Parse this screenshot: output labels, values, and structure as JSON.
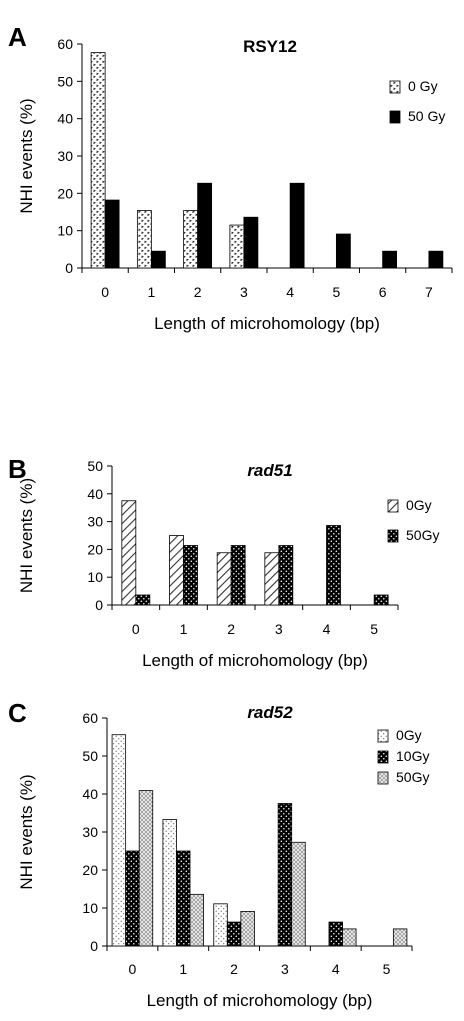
{
  "chart_data": [
    {
      "type": "bar",
      "panel": "A",
      "title": "RSY12",
      "title_italic": false,
      "xlabel": "Length of microhomology (bp)",
      "ylabel": "NHI events (%)",
      "categories": [
        "0",
        "1",
        "2",
        "3",
        "4",
        "5",
        "6",
        "7"
      ],
      "ylim": [
        0,
        60
      ],
      "yticks": [
        0,
        10,
        20,
        30,
        40,
        50,
        60
      ],
      "grid": false,
      "legend_position": "top-right",
      "series": [
        {
          "name": "0 Gy",
          "pattern": "dots",
          "values": [
            57.7,
            15.4,
            15.4,
            11.5,
            0,
            0,
            0,
            0
          ]
        },
        {
          "name": "50 Gy",
          "pattern": "solid",
          "values": [
            18.2,
            4.5,
            22.7,
            13.6,
            22.7,
            9.1,
            4.5,
            4.5
          ]
        }
      ]
    },
    {
      "type": "bar",
      "panel": "B",
      "title": "rad51",
      "title_italic": true,
      "xlabel": "Length of microhomology (bp)",
      "ylabel": "NHI events (%)",
      "categories": [
        "0",
        "1",
        "2",
        "3",
        "4",
        "5"
      ],
      "ylim": [
        0,
        50
      ],
      "yticks": [
        0,
        10,
        20,
        30,
        40,
        50
      ],
      "grid": false,
      "legend_position": "top-right",
      "series": [
        {
          "name": "0Gy",
          "pattern": "hatch",
          "values": [
            37.5,
            25,
            18.8,
            18.8,
            0,
            0
          ]
        },
        {
          "name": "50Gy",
          "pattern": "darkdots",
          "values": [
            3.6,
            21.4,
            21.4,
            21.4,
            28.6,
            3.6
          ]
        }
      ]
    },
    {
      "type": "bar",
      "panel": "C",
      "title": "rad52",
      "title_italic": true,
      "xlabel": "Length of microhomology (bp)",
      "ylabel": "NHI events (%)",
      "categories": [
        "0",
        "1",
        "2",
        "3",
        "4",
        "5"
      ],
      "ylim": [
        0,
        60
      ],
      "yticks": [
        0,
        10,
        20,
        30,
        40,
        50,
        60
      ],
      "grid": false,
      "legend_position": "top-right",
      "series": [
        {
          "name": "0Gy",
          "pattern": "lightdots",
          "values": [
            55.6,
            33.3,
            11.1,
            0,
            0,
            0
          ]
        },
        {
          "name": "10Gy",
          "pattern": "darkdots",
          "values": [
            25,
            25,
            6.3,
            37.5,
            6.3,
            0
          ]
        },
        {
          "name": "50Gy",
          "pattern": "crosshatch",
          "values": [
            40.9,
            13.6,
            9.1,
            27.3,
            4.5,
            4.5
          ]
        }
      ]
    }
  ]
}
